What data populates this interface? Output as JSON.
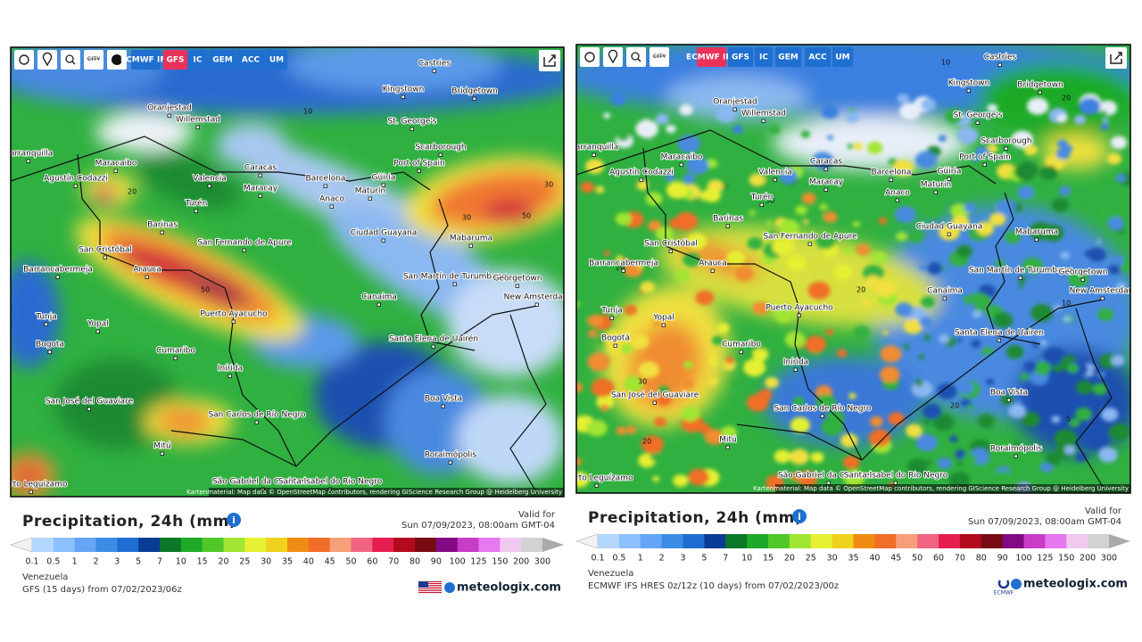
{
  "panels": [
    {
      "toolbar": {
        "city": "CITY",
        "models": [
          "ECMWF IFS",
          "GFS",
          "IC",
          "GEM",
          "ACC",
          "UM"
        ]
      },
      "cities": [
        "Castries",
        "Kingstown",
        "Bridgetown",
        "Oranjestad",
        "Willemstad",
        "St. George's",
        "Scarborough",
        "Barranquilla",
        "Maracaibo",
        "Caracas",
        "Port of Spain",
        "Agustín Codazzi",
        "Valencia",
        "Barcelona",
        "Güiria",
        "Maracay",
        "Maturín",
        "Anaco",
        "Turén",
        "Barinas",
        "Ciudad Guayana",
        "Mabaruma",
        "San Cristóbal",
        "San Fernando de Apure",
        "Barrancabermeja",
        "Arauca",
        "San Martín de Turumbang",
        "Georgetown",
        "Canaima",
        "New Amsterdam",
        "Puerto Ayacucho",
        "Tunja",
        "Yopal",
        "Bogota",
        "Cumaribo",
        "Santa Elena de Uairén",
        "Inírida",
        "San José del Guaviare",
        "Boa Vista",
        "San Carlos de Río Negro",
        "Mitú",
        "Roraimópolis",
        "São Gabriel da Cachoeira",
        "Santa Isabel do Rio Negro",
        "Puerto Leguízamo"
      ],
      "map_values": [
        20,
        30,
        50,
        30,
        50,
        10
      ],
      "attribution": "Kartenmaterial: Map data © OpenStreetMap contributors, rendering GIScience Research Group @ Heidelberg University",
      "legend": {
        "title": "Precipitation, 24h (mm)",
        "valid_label": "Valid for",
        "valid_time": "Sun 07/09/2023, 08:00am GMT-04",
        "scale": [
          0.1,
          0.5,
          1,
          2,
          3,
          5,
          7,
          10,
          15,
          20,
          25,
          30,
          35,
          40,
          45,
          50,
          60,
          70,
          80,
          90,
          100,
          125,
          150,
          200,
          300
        ],
        "region": "Venezuela",
        "model_run": "GFS (15 days) from 07/02/2023/06z",
        "brand": "meteologix.com"
      }
    },
    {
      "toolbar": {
        "city": "CITY",
        "models": [
          "ECMWF IFS",
          "GFS",
          "IC",
          "GEM",
          "ACC",
          "UM"
        ]
      },
      "cities": [
        "Castries",
        "Kingstown",
        "Bridgetown",
        "Oranjestad",
        "Willemstad",
        "St. George's",
        "Scarborough",
        "Barranquilla",
        "Maracaibo",
        "Caracas",
        "Port of Spain",
        "Agustín Codazzi",
        "Valencia",
        "Barcelona",
        "Güiria",
        "Maracay",
        "Maturín",
        "Anaco",
        "Turén",
        "Barinas",
        "Ciudad Guayana",
        "Mabaruma",
        "San Cristóbal",
        "San Fernando de Apure",
        "Barrancabermeja",
        "Arauca",
        "San Martín de Turumbang",
        "Georgetown",
        "Canaima",
        "New Amsterdam",
        "Puerto Ayacucho",
        "Tunja",
        "Yopal",
        "Bogotá",
        "Cumaribo",
        "Santa Elena de Uairen",
        "Inírida",
        "San José del Guaviare",
        "Boa Vista",
        "San Carlos de Río Negro",
        "Mitú",
        "Roraimópolis",
        "São Gabriel da Cachoeira",
        "Santa Isabel do Rio Negro",
        "Puerto Leguízamo"
      ],
      "map_values": [
        20,
        30,
        20,
        10,
        20,
        30,
        20,
        10,
        20,
        5
      ],
      "attribution": "Kartenmaterial: Map data © OpenStreetMap contributors, rendering GIScience Research Group @ Heidelberg University",
      "legend": {
        "title": "Precipitation, 24h (mm)",
        "valid_label": "Valid for",
        "valid_time": "Sun 07/09/2023, 08:00am GMT-04",
        "scale": [
          0.1,
          0.5,
          1,
          2,
          3,
          5,
          7,
          10,
          15,
          20,
          25,
          30,
          35,
          40,
          45,
          50,
          60,
          70,
          80,
          90,
          100,
          125,
          150,
          200,
          300
        ],
        "region": "Venezuela",
        "model_run": "ECMWF IFS HRES 0z/12z (10 days) from 07/02/2023/00z",
        "brand": "meteologix.com",
        "logo_text": "ECMWF"
      }
    }
  ]
}
